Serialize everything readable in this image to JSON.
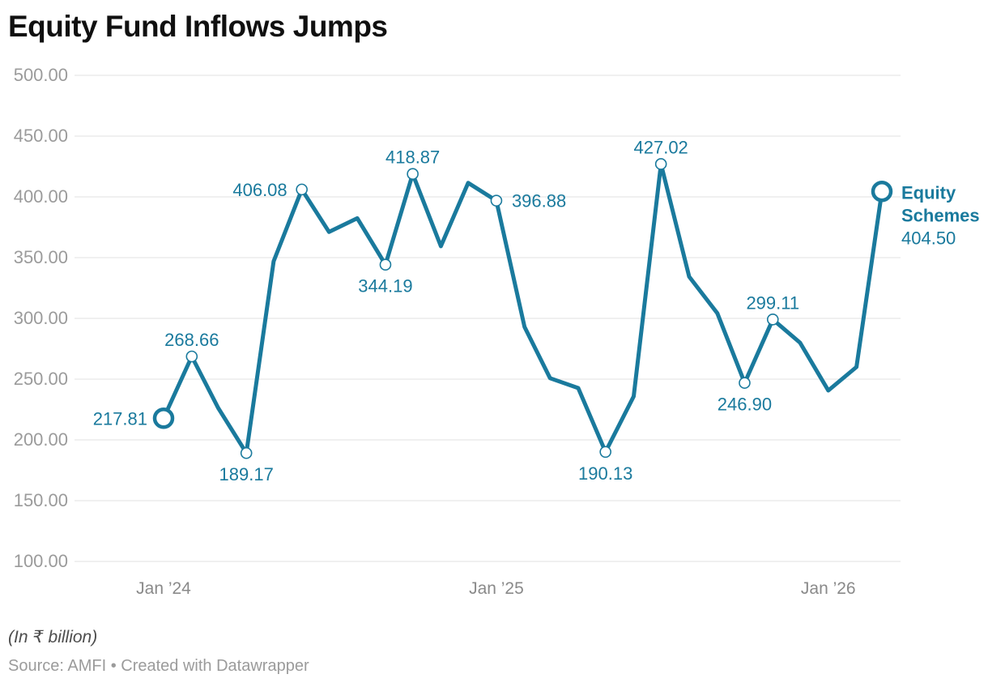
{
  "header": {
    "title": "Equity Fund Inflows Jumps"
  },
  "footer": {
    "unit_note": "(In ₹ billion)",
    "source_line": "Source: AMFI • Created with Datawrapper"
  },
  "chart_data": {
    "type": "line",
    "title": "Equity Fund Inflows Jumps",
    "unit": "₹ billion",
    "series_name": "Equity Schemes",
    "x": [
      "2024-01",
      "2024-02",
      "2024-03",
      "2024-04",
      "2024-05",
      "2024-06",
      "2024-07",
      "2024-08",
      "2024-09",
      "2024-10",
      "2024-11",
      "2024-12",
      "2025-01",
      "2025-02",
      "2025-03",
      "2025-04",
      "2025-05",
      "2025-06",
      "2025-07",
      "2025-08",
      "2025-09",
      "2025-10",
      "2025-11",
      "2025-12",
      "2026-01",
      "2026-02",
      "2026-03"
    ],
    "values": [
      217.81,
      268.66,
      226.33,
      189.17,
      346.97,
      406.08,
      371.13,
      382.39,
      344.19,
      418.87,
      359.43,
      411.56,
      396.88,
      293.03,
      250.82,
      242.69,
      190.13,
      235.87,
      427.02,
      334.3,
      304.21,
      246.9,
      299.11,
      280.0,
      240.7,
      260.0,
      404.5
    ],
    "ylim": [
      100,
      500
    ],
    "grid": "horizontal",
    "legend_position": "end-of-line",
    "y_ticks": [
      {
        "value": 500,
        "label": "500.00"
      },
      {
        "value": 450,
        "label": "450.00"
      },
      {
        "value": 400,
        "label": "400.00"
      },
      {
        "value": 350,
        "label": "350.00"
      },
      {
        "value": 300,
        "label": "300.00"
      },
      {
        "value": 250,
        "label": "250.00"
      },
      {
        "value": 200,
        "label": "200.00"
      },
      {
        "value": 150,
        "label": "150.00"
      },
      {
        "value": 100,
        "label": "100.00"
      }
    ],
    "x_ticks": [
      {
        "index": 0,
        "label": "Jan ’24"
      },
      {
        "index": 12,
        "label": "Jan ’25"
      },
      {
        "index": 24,
        "label": "Jan ’26"
      }
    ],
    "labeled_points": [
      {
        "index": 0,
        "label": "217.81",
        "position": "left",
        "marker": "big"
      },
      {
        "index": 1,
        "label": "268.66",
        "position": "above",
        "marker": "small"
      },
      {
        "index": 3,
        "label": "189.17",
        "position": "below",
        "marker": "small"
      },
      {
        "index": 5,
        "label": "406.08",
        "position": "left",
        "marker": "small"
      },
      {
        "index": 8,
        "label": "344.19",
        "position": "below",
        "marker": "small"
      },
      {
        "index": 9,
        "label": "418.87",
        "position": "above",
        "marker": "small"
      },
      {
        "index": 12,
        "label": "396.88",
        "position": "right",
        "marker": "small"
      },
      {
        "index": 16,
        "label": "190.13",
        "position": "below",
        "marker": "small"
      },
      {
        "index": 18,
        "label": "427.02",
        "position": "above",
        "marker": "small"
      },
      {
        "index": 21,
        "label": "246.90",
        "position": "below",
        "marker": "small"
      },
      {
        "index": 22,
        "label": "299.11",
        "position": "above",
        "marker": "small"
      },
      {
        "index": 26,
        "label": "404.50",
        "position": "annotation",
        "marker": "big"
      }
    ],
    "end_annotation": {
      "index": 26,
      "name_lines": [
        "Equity",
        "Schemes"
      ],
      "value_label": "404.50"
    },
    "colors": {
      "line": "#1A7A9D",
      "point_label": "#1A7A9D",
      "annotation": "#1A7A9D",
      "grid": "#E0E0E0",
      "y_axis_text": "#9B9B9B",
      "x_axis_text": "#8A8A8A",
      "title": "#101010",
      "unit_note": "#4D4D4D",
      "source": "#9B9B9B",
      "marker_fill": "#FFFFFF"
    }
  }
}
